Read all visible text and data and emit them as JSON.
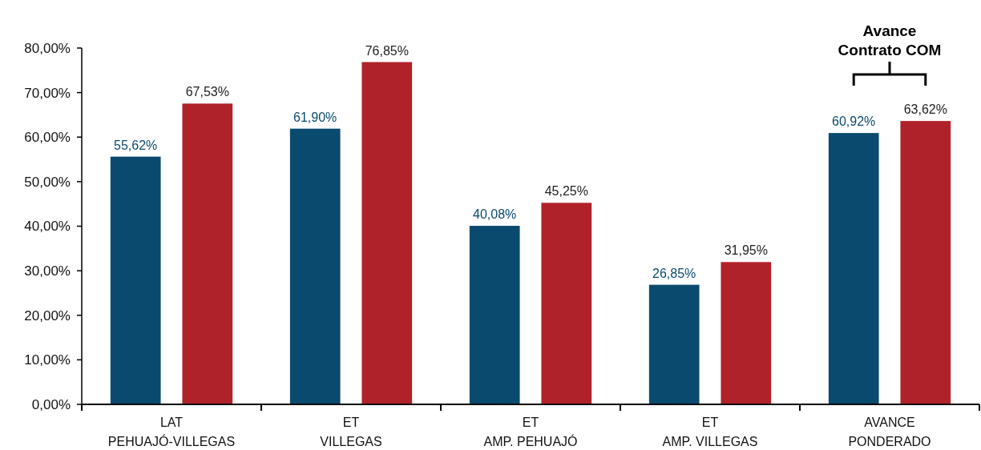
{
  "chart_data": {
    "type": "bar",
    "categories": [
      "LAT\nPEHUAJÓ-VILLEGAS",
      "ET\nVILLEGAS",
      "ET\nAMP. PEHUAJÓ",
      "ET\nAMP. VILLEGAS",
      "AVANCE\nPONDERADO"
    ],
    "series": [
      {
        "color": "#0b4a6f",
        "values": [
          55.62,
          61.9,
          40.08,
          26.85,
          60.92
        ],
        "value_labels": [
          "55,62%",
          "61,90%",
          "40,08%",
          "26,85%",
          "60,92%"
        ]
      },
      {
        "color": "#b0222a",
        "values": [
          67.53,
          76.85,
          45.25,
          31.95,
          63.62
        ],
        "value_labels": [
          "67,53%",
          "76,85%",
          "45,25%",
          "31,95%",
          "63,62%"
        ]
      }
    ],
    "ylim": [
      0,
      80
    ],
    "yticks": [
      {
        "value": 0,
        "label": "0,00%"
      },
      {
        "value": 10,
        "label": "10,00%"
      },
      {
        "value": 20,
        "label": "20,00%"
      },
      {
        "value": 30,
        "label": "30,00%"
      },
      {
        "value": 40,
        "label": "40,00%"
      },
      {
        "value": 50,
        "label": "50,00%"
      },
      {
        "value": 60,
        "label": "60,00%"
      },
      {
        "value": 70,
        "label": "70,00%"
      },
      {
        "value": 80,
        "label": "80,00%"
      }
    ],
    "annotations": [
      "Avance\nContrato COM"
    ],
    "grid": false
  }
}
